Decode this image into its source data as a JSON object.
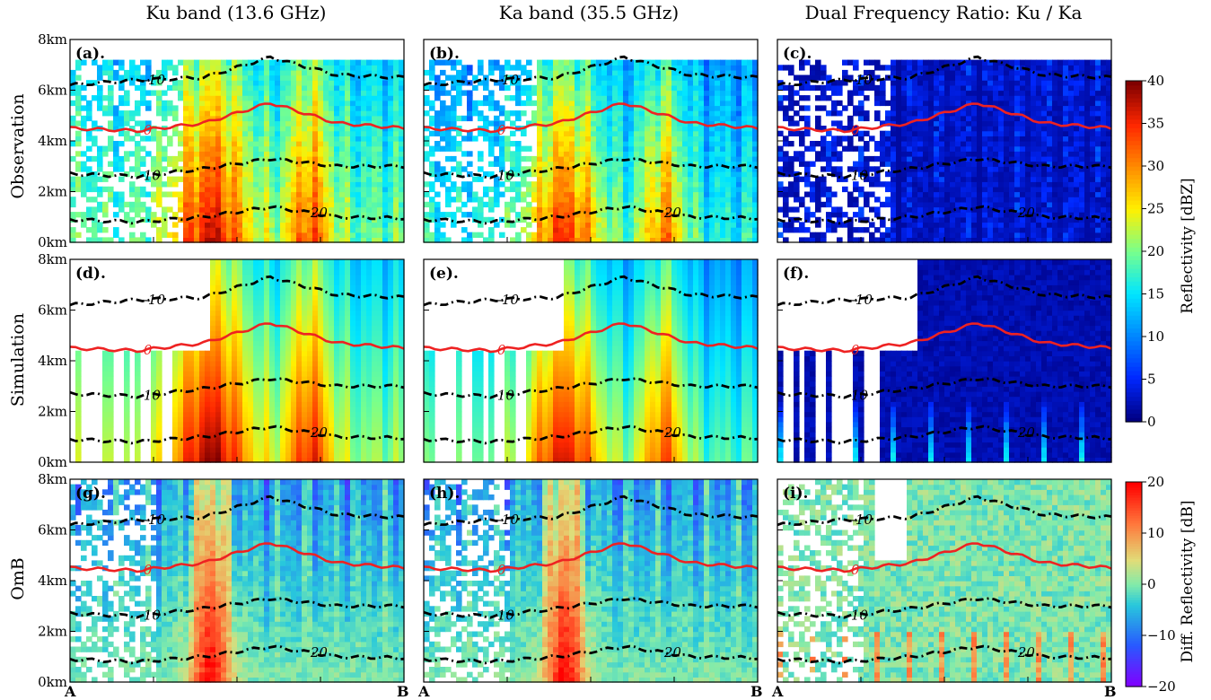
{
  "column_titles": [
    "Ku band (13.6 GHz)",
    "Ka band (35.5 GHz)",
    "Dual Frequency Ratio: Ku / Ka"
  ],
  "row_titles": [
    "Observation",
    "Simulation",
    "OmB"
  ],
  "panel_labels": [
    "(a).",
    "(b).",
    "(c).",
    "(d).",
    "(e).",
    "(f).",
    "(g).",
    "(h).",
    "(i)."
  ],
  "y_tick_labels": [
    "0km",
    "2km",
    "4km",
    "6km",
    "8km"
  ],
  "x_endpoint_labels": [
    "A",
    "B"
  ],
  "colorbars": [
    {
      "label": "Reflectivity [dBZ]",
      "ticks": [
        "0",
        "5",
        "10",
        "15",
        "20",
        "25",
        "30",
        "35",
        "40"
      ],
      "colormap": "jet"
    },
    {
      "label": "Diff. Reflectivity [dB]",
      "ticks": [
        "−20",
        "−10",
        "0",
        "10",
        "20"
      ],
      "colormap": "rainbow"
    }
  ],
  "contour_labels": [
    "-10",
    "0",
    "10",
    "20"
  ],
  "colors": {
    "freezing_level": "#ee2222",
    "isotherms": "#000000"
  },
  "chart_data": {
    "type": "heatmap",
    "layout": "3x3 grid of vertical cross-sections along transect A to B",
    "rows": [
      "Observation",
      "Simulation",
      "OmB"
    ],
    "columns": [
      "Ku band (13.6 GHz)",
      "Ka band (35.5 GHz)",
      "Dual Frequency Ratio: Ku / Ka"
    ],
    "y_axis": {
      "label": "",
      "range_km": [
        0,
        8
      ],
      "ticks_km": [
        0,
        2,
        4,
        6,
        8
      ]
    },
    "x_axis": {
      "start": "A",
      "end": "B"
    },
    "isotherms_celsius": [
      {
        "temperature": -10,
        "approx_height_km": [
          6.2,
          6.4,
          6.5,
          7.3,
          6.6,
          6.5
        ]
      },
      {
        "temperature": 0,
        "approx_height_km": [
          4.5,
          4.4,
          4.7,
          5.5,
          4.7,
          4.5
        ]
      },
      {
        "temperature": 10,
        "approx_height_km": [
          2.7,
          2.6,
          2.9,
          3.3,
          3.0,
          3.0
        ]
      },
      {
        "temperature": 20,
        "approx_height_km": [
          0.9,
          0.8,
          1.0,
          1.4,
          1.0,
          0.95
        ]
      }
    ],
    "colorbar_reflectivity": {
      "label": "Reflectivity [dBZ]",
      "range": [
        0,
        40
      ]
    },
    "colorbar_difference": {
      "label": "Diff. Reflectivity [dB]",
      "range": [
        -20,
        20
      ]
    }
  }
}
